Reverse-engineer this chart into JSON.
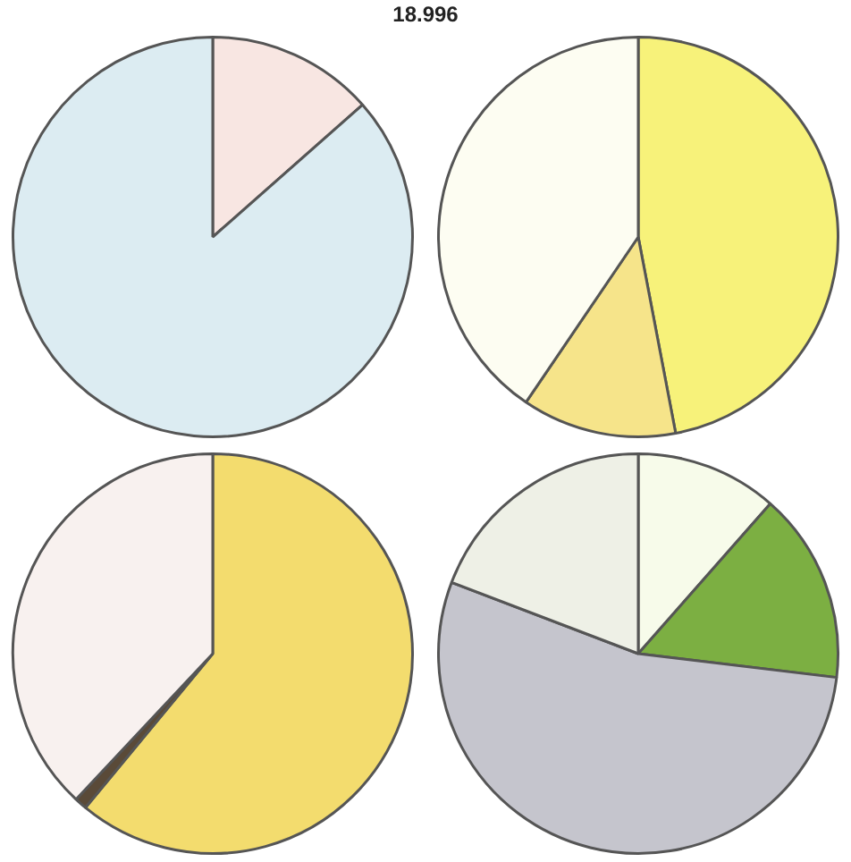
{
  "chart_data": [
    {
      "type": "pie",
      "title": "18.996",
      "categories": [
        null,
        null
      ],
      "values": [
        13.5,
        86.5
      ],
      "colors": [
        "#f8e6e2",
        "#dcecf2"
      ]
    },
    {
      "type": "pie",
      "categories": [
        null,
        null,
        null
      ],
      "values": [
        47,
        12.5,
        40.5
      ],
      "colors": [
        "#f7f27a",
        "#f6e48a",
        "#fdfdf2"
      ]
    },
    {
      "type": "pie",
      "categories": [
        null,
        null,
        null
      ],
      "values": [
        61,
        1,
        38
      ],
      "colors": [
        "#f3dc6e",
        "#5a4a38",
        "#f8f1ef"
      ]
    },
    {
      "type": "pie",
      "categories": [
        null,
        null,
        null,
        null
      ],
      "values": [
        11.5,
        15.4,
        53.9,
        19.2
      ],
      "colors": [
        "#f7fbea",
        "#7caf42",
        "#c5c5cd",
        "#eef0e6"
      ]
    }
  ]
}
